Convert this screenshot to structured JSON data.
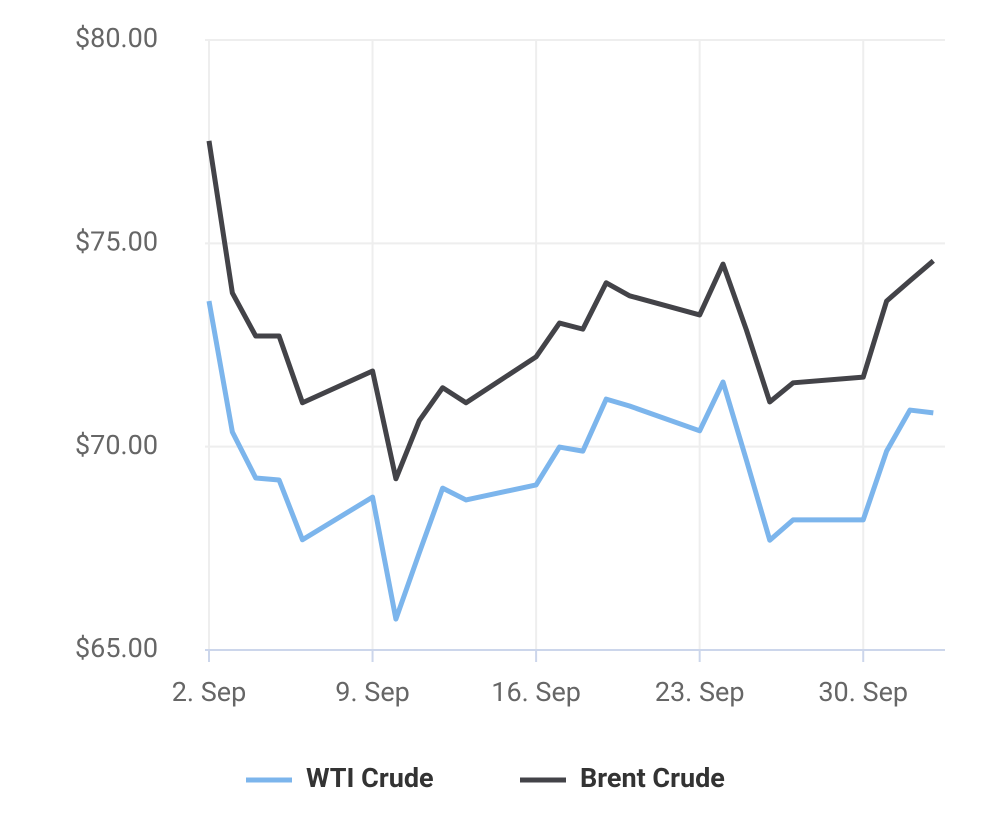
{
  "chart_data": {
    "type": "line",
    "x": [
      2,
      3,
      4,
      5,
      6,
      9,
      10,
      11,
      12,
      13,
      16,
      17,
      18,
      19,
      20,
      23,
      24,
      25,
      26,
      27,
      30,
      31,
      32,
      33
    ],
    "series": [
      {
        "name": "WTI Crude",
        "color": "#7cb5ec",
        "values": [
          73.58,
          70.36,
          69.23,
          69.18,
          67.71,
          68.76,
          65.76,
          67.39,
          68.98,
          68.69,
          69.06,
          69.99,
          69.89,
          71.17,
          71.0,
          70.39,
          71.59,
          69.67,
          67.7,
          68.2,
          68.2,
          69.89,
          70.9,
          70.83
        ]
      },
      {
        "name": "Brent Crude",
        "color": "#434348",
        "values": [
          77.52,
          73.78,
          72.72,
          72.72,
          71.08,
          71.86,
          69.21,
          70.64,
          71.45,
          71.08,
          72.21,
          73.04,
          72.89,
          74.03,
          73.71,
          73.24,
          74.49,
          72.87,
          71.1,
          71.57,
          71.71,
          73.58,
          74.08,
          74.57
        ]
      }
    ],
    "xlim": [
      2,
      33.5
    ],
    "xticks": [
      {
        "value": 2,
        "label": "2. Sep"
      },
      {
        "value": 9,
        "label": "9. Sep"
      },
      {
        "value": 16,
        "label": "16. Sep"
      },
      {
        "value": 23,
        "label": "23. Sep"
      },
      {
        "value": 30,
        "label": "30. Sep"
      }
    ],
    "ylim": [
      65,
      80
    ],
    "yticks": [
      {
        "value": 65,
        "label": "$65.00"
      },
      {
        "value": 70,
        "label": "$70.00"
      },
      {
        "value": 75,
        "label": "$75.00"
      },
      {
        "value": 80,
        "label": "$80.00"
      }
    ],
    "grid": true,
    "legend": "bottom"
  }
}
